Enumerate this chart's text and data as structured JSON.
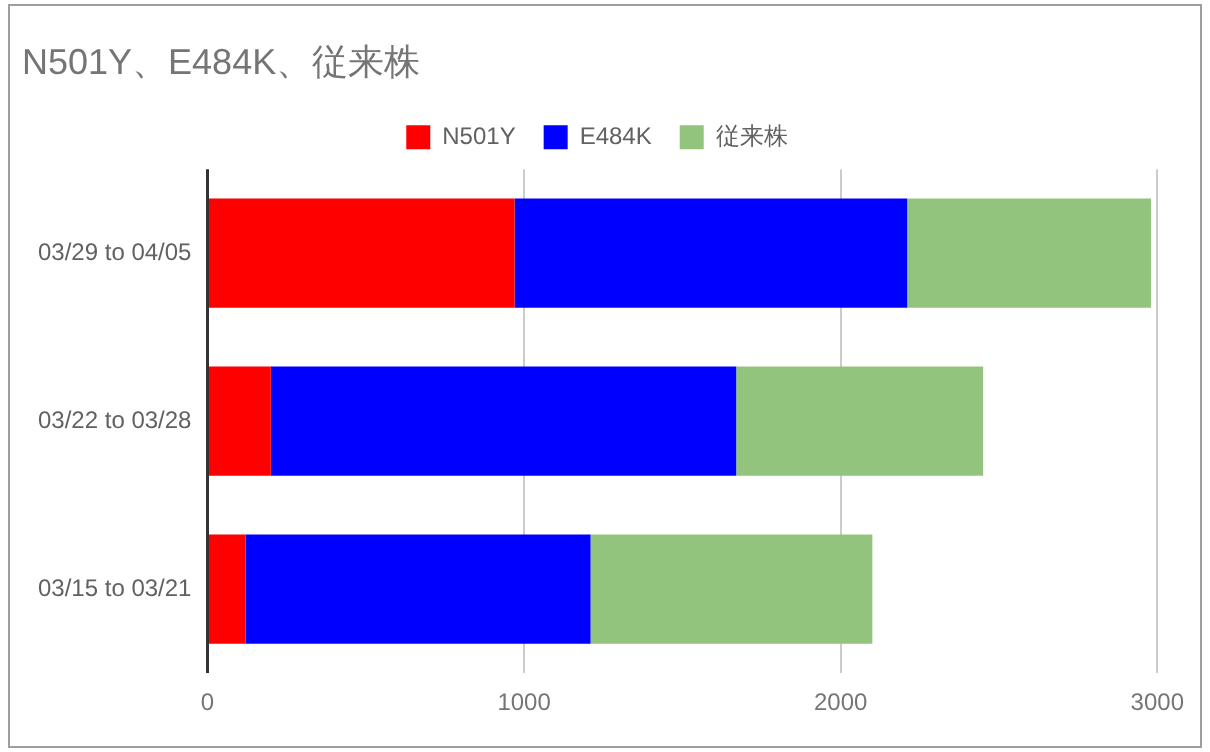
{
  "chart_data": {
    "type": "bar",
    "orientation": "horizontal",
    "stacked": true,
    "title": "N501Y、E484K、従来株",
    "categories": [
      "03/29 to 04/05",
      "03/22 to 03/28",
      "03/15 to 03/21"
    ],
    "series": [
      {
        "name": "N501Y",
        "color": "#ff0000",
        "values": [
          970,
          200,
          120
        ]
      },
      {
        "name": "E484K",
        "color": "#0000ff",
        "values": [
          1240,
          1470,
          1090
        ]
      },
      {
        "name": "従来株",
        "color": "#93c47d",
        "values": [
          770,
          780,
          890
        ]
      }
    ],
    "xlim": [
      0,
      3000
    ],
    "xticks": [
      0,
      1000,
      2000,
      3000
    ],
    "grid": "x",
    "legend": "top"
  }
}
